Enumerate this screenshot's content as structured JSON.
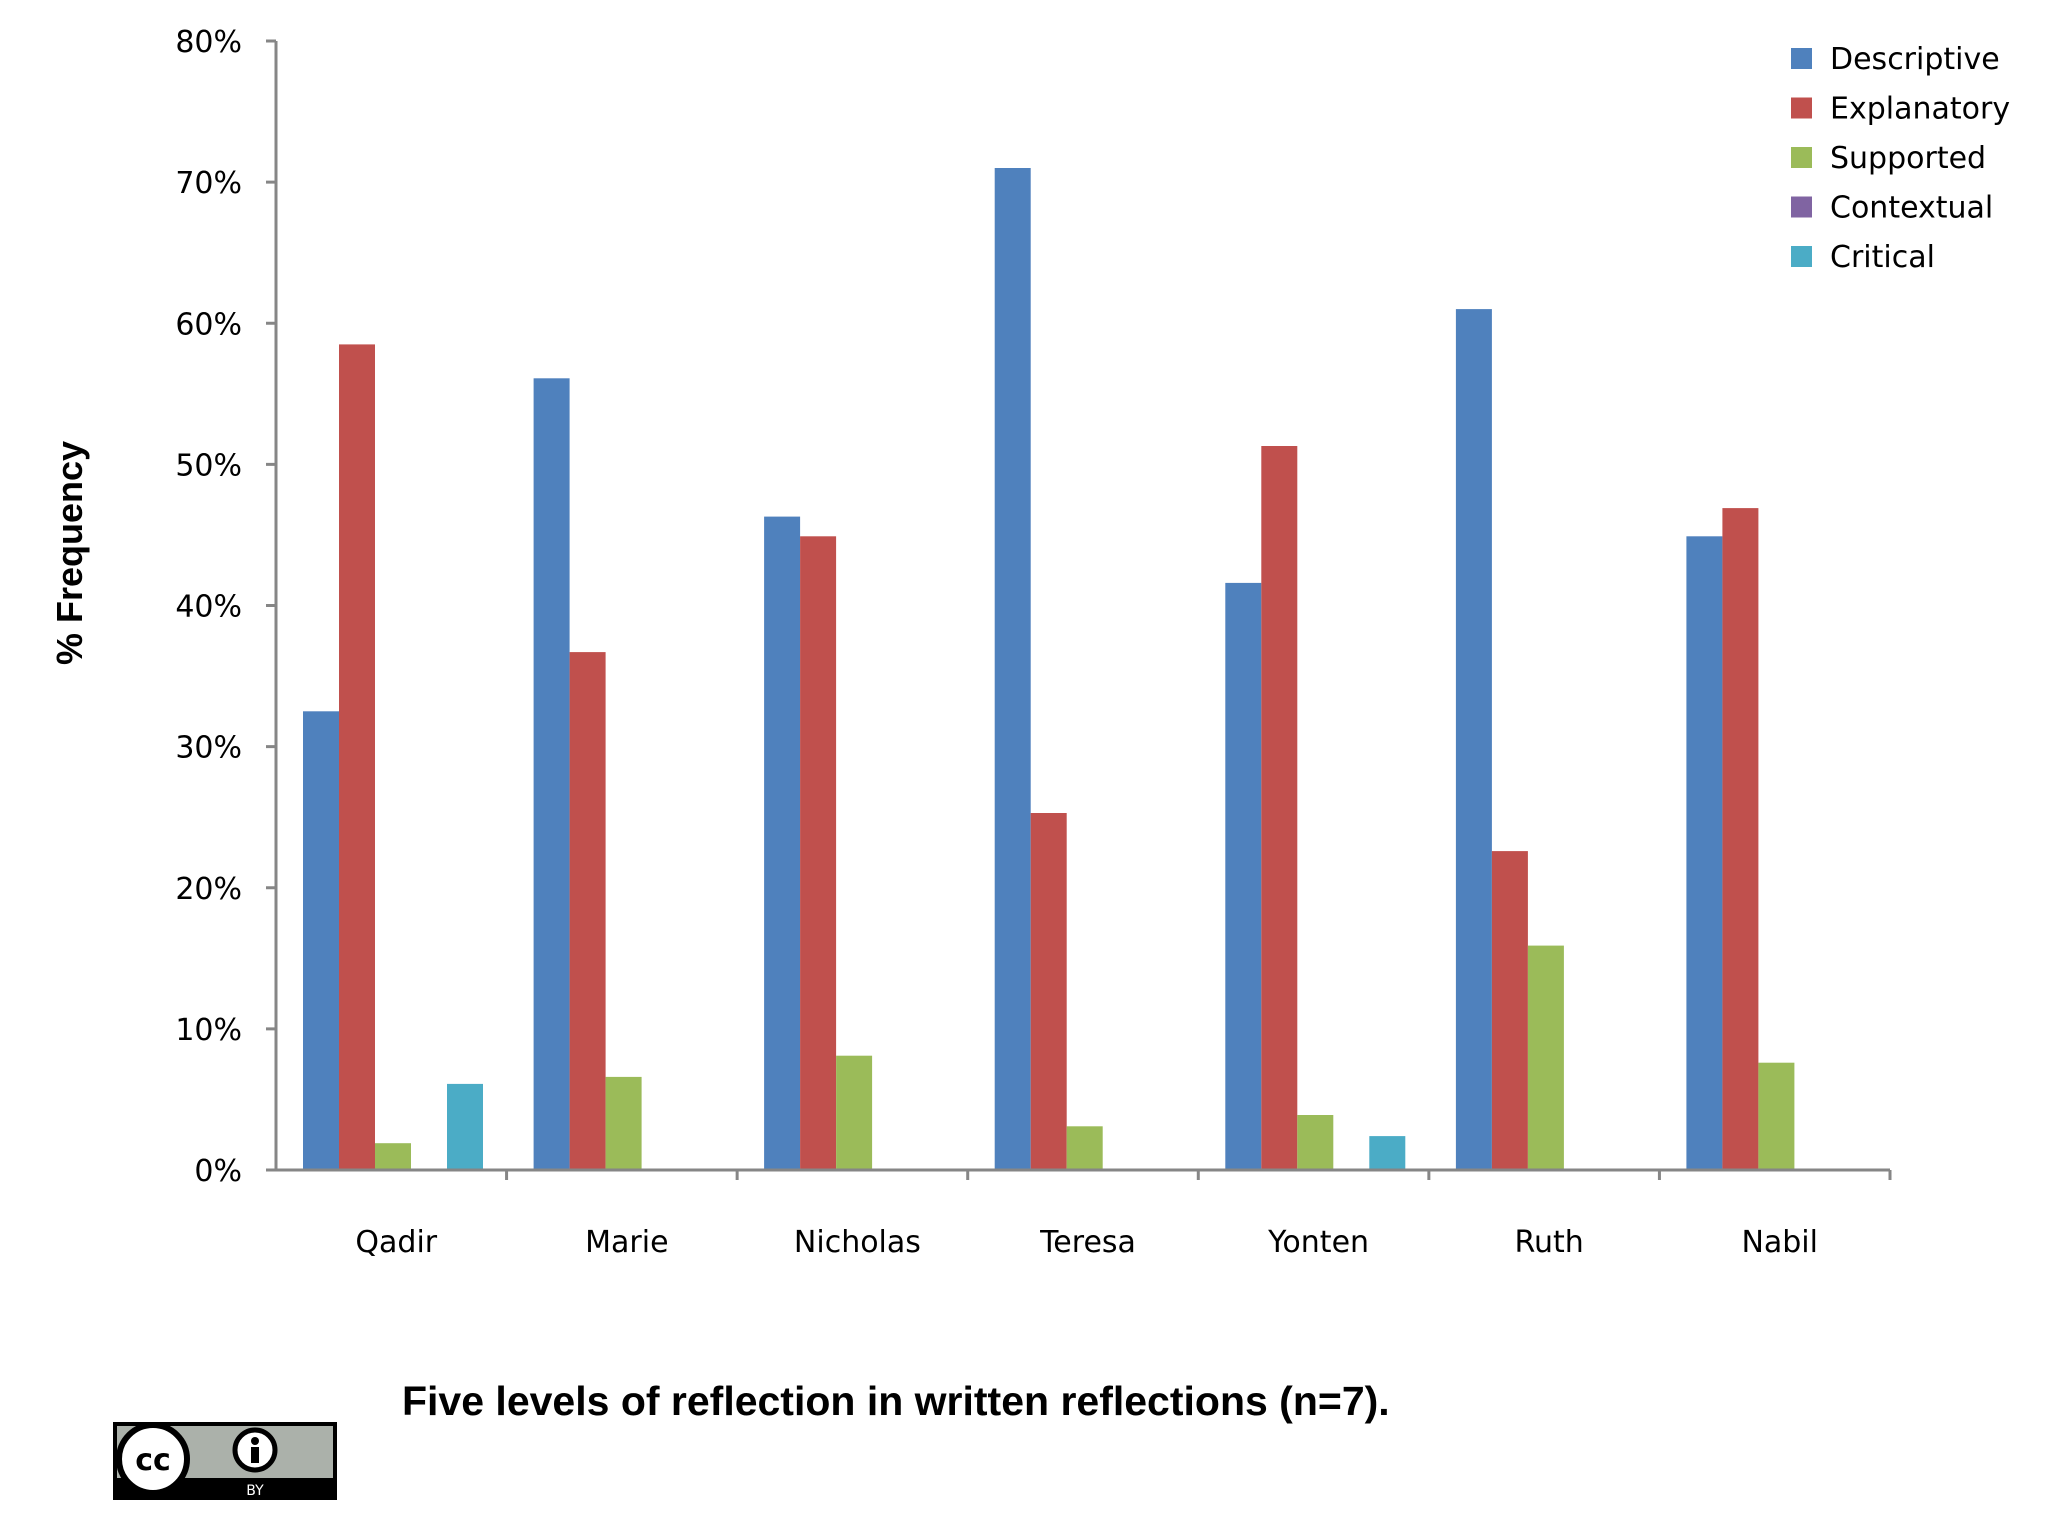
{
  "chart_data": {
    "type": "bar",
    "title": "",
    "xlabel": "",
    "ylabel": "% Frequency",
    "ylim": [
      0,
      80
    ],
    "yticks": [
      "0%",
      "10%",
      "20%",
      "30%",
      "40%",
      "50%",
      "60%",
      "70%",
      "80%"
    ],
    "categories": [
      "Qadir",
      "Marie",
      "Nicholas",
      "Teresa",
      "Yonten",
      "Ruth",
      "Nabil"
    ],
    "series": [
      {
        "name": "Descriptive",
        "color": "#4F81BD",
        "values": [
          32.5,
          56.1,
          46.3,
          71.0,
          41.6,
          61.0,
          44.9
        ]
      },
      {
        "name": "Explanatory",
        "color": "#C0504D",
        "values": [
          58.5,
          36.7,
          44.9,
          25.3,
          51.3,
          22.6,
          46.9
        ]
      },
      {
        "name": "Supported",
        "color": "#9BBB59",
        "values": [
          1.9,
          6.6,
          8.1,
          3.1,
          3.9,
          15.9,
          7.6
        ]
      },
      {
        "name": "Contextual",
        "color": "#8064A2",
        "values": [
          0,
          0,
          0,
          0,
          0,
          0,
          0
        ]
      },
      {
        "name": "Critical",
        "color": "#4BACC6",
        "values": [
          6.1,
          0,
          0,
          0,
          2.4,
          0,
          0
        ]
      }
    ],
    "grid": false,
    "legend_position": "top-right"
  },
  "caption": "Five levels of reflection in written reflections (n=7).",
  "license_badge": {
    "icon": "cc-by-icon",
    "text": "BY"
  },
  "colors": {
    "axis": "#868686",
    "text": "#000000"
  }
}
